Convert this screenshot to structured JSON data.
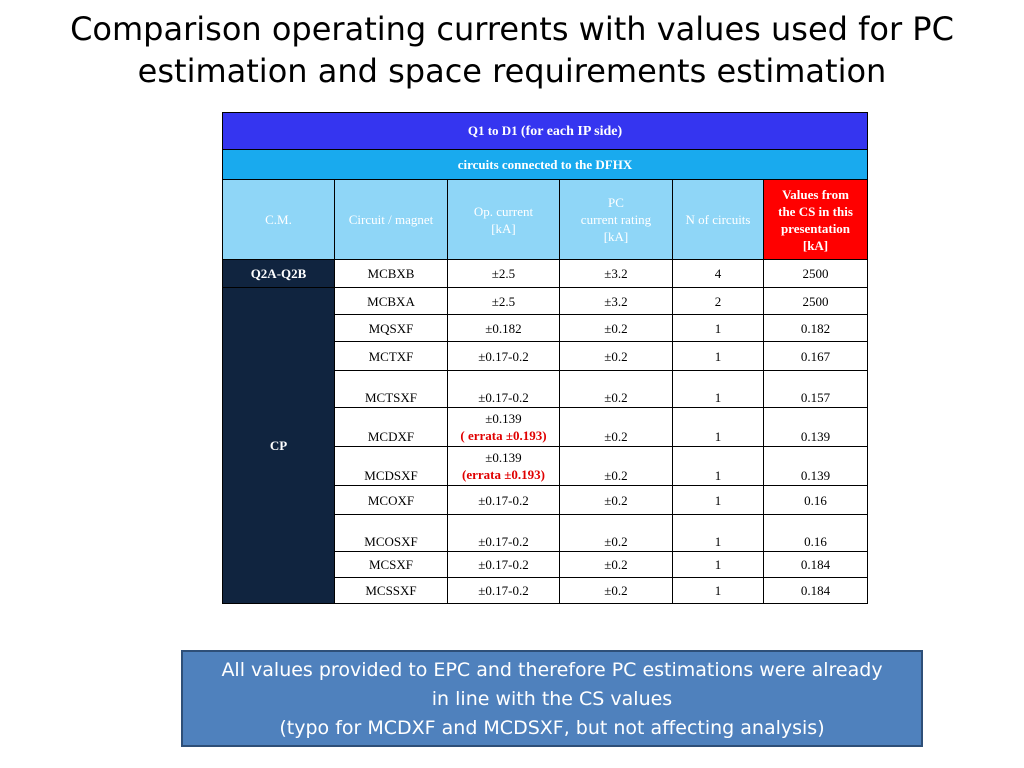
{
  "title": {
    "line1": "Comparison  operating currents with values used for PC",
    "line2": "estimation and space requirements estimation"
  },
  "table": {
    "band_main": {
      "bold": "Q1 to D1",
      "small": "(for each IP side)"
    },
    "band_sub": "circuits connected to the DFHX",
    "headers": {
      "cm": "C.M.",
      "circuit": "Circuit / magnet",
      "op_current": [
        "Op. current",
        "[kA]"
      ],
      "pc_rating": [
        "PC",
        "current rating",
        "[kA]"
      ],
      "n_circuits": "N of circuits",
      "cs_values": [
        "Values from",
        "the CS in this",
        "presentation",
        "[kA]"
      ]
    },
    "groups": {
      "q2a": "Q2A-Q2B",
      "cp": "CP"
    },
    "rows": [
      {
        "magnet": "MCBXB",
        "op": "±2.5",
        "pc": "±3.2",
        "n": "4",
        "cs": "2500"
      },
      {
        "magnet": "MCBXA",
        "op": "±2.5",
        "pc": "±3.2",
        "n": "2",
        "cs": "2500"
      },
      {
        "magnet": "MQSXF",
        "op": "±0.182",
        "pc": "±0.2",
        "n": "1",
        "cs": "0.182"
      },
      {
        "magnet": "MCTXF",
        "op": "±0.17-0.2",
        "pc": " ±0.2",
        "n": "1",
        "cs": "0.167"
      },
      {
        "magnet": "MCTSXF",
        "op": "±0.17-0.2",
        "pc": "±0.2",
        "n": "1",
        "cs": "0.157"
      },
      {
        "magnet": "MCDXF",
        "op": "±0.139",
        "errata": "( errata ±0.193)",
        "pc": "±0.2",
        "n": "1",
        "cs": "0.139"
      },
      {
        "magnet": "MCDSXF",
        "op": "±0.139",
        "errata": "(errata ±0.193)",
        "pc": "±0.2",
        "n": "1",
        "cs": "0.139"
      },
      {
        "magnet": "MCOXF",
        "op": "±0.17-0.2",
        "pc": "±0.2",
        "n": "1",
        "cs": "0.16"
      },
      {
        "magnet": "MCOSXF",
        "op": "±0.17-0.2",
        "pc": "±0.2",
        "n": "1",
        "cs": "0.16"
      },
      {
        "magnet": "MCSXF",
        "op": "±0.17-0.2",
        "pc": "±0.2",
        "n": "1",
        "cs": "0.184"
      },
      {
        "magnet": "MCSSXF",
        "op": "±0.17-0.2",
        "pc": "±0.2",
        "n": "1",
        "cs": "0.184"
      }
    ]
  },
  "note": {
    "line1": "All values provided to EPC and therefore PC estimations were already",
    "line2": "in line with the CS values",
    "line3": "(typo for MCDXF and MCDSXF, but not affecting analysis)"
  },
  "colors": {
    "band_main": "#3535f0",
    "band_sub": "#19aaee",
    "header": "#8fd6f7",
    "header_red": "#ff0000",
    "cm_dark": "#10243f",
    "note_box": "#4f81bd",
    "errata": "#e00000"
  }
}
